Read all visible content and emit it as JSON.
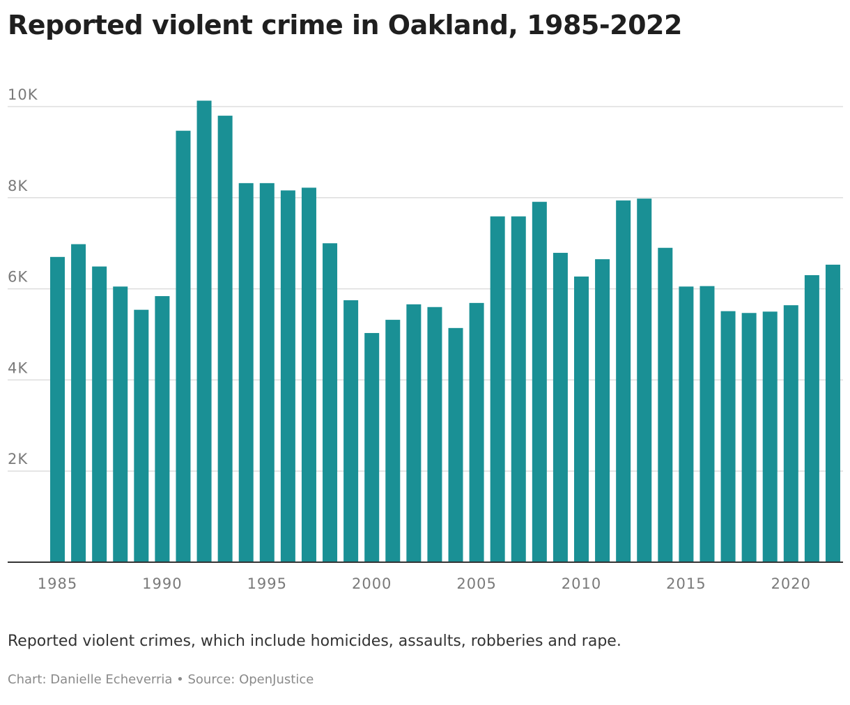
{
  "title": "Reported violent crime in Oakland, 1985-2022",
  "caption": "Reported violent crimes, which include homicides, assaults, robberies and rape.",
  "credit": "Chart: Danielle Echeverria • Source: OpenJustice",
  "colors": {
    "bar": "#1a9095",
    "grid": "#dddddd",
    "axis": "#333333",
    "text": "#1f1f1f",
    "muted": "#7a7a7a"
  },
  "chart_data": {
    "type": "bar",
    "categories": [
      "1985",
      "1986",
      "1987",
      "1988",
      "1989",
      "1990",
      "1991",
      "1992",
      "1993",
      "1994",
      "1995",
      "1996",
      "1997",
      "1998",
      "1999",
      "2000",
      "2001",
      "2002",
      "2003",
      "2004",
      "2005",
      "2006",
      "2007",
      "2008",
      "2009",
      "2010",
      "2011",
      "2012",
      "2013",
      "2014",
      "2015",
      "2016",
      "2017",
      "2018",
      "2019",
      "2020",
      "2021",
      "2022"
    ],
    "values": [
      6700,
      6980,
      6490,
      6050,
      5540,
      5840,
      9470,
      10130,
      9800,
      8320,
      8320,
      8160,
      8220,
      7000,
      5750,
      5030,
      5320,
      5660,
      5600,
      5140,
      5690,
      7590,
      7590,
      7910,
      6790,
      6270,
      6650,
      7940,
      7980,
      6900,
      6050,
      6060,
      5510,
      5470,
      5500,
      5640,
      6300,
      6530
    ],
    "xticks": [
      "1985",
      "1990",
      "1995",
      "2000",
      "2005",
      "2010",
      "2015",
      "2020"
    ],
    "yticks": [
      2000,
      4000,
      6000,
      8000,
      10000
    ],
    "ytick_labels": [
      "2K",
      "4K",
      "6K",
      "8K",
      "10K"
    ],
    "ylim": [
      0,
      10000
    ],
    "grid": true,
    "legend": "none"
  }
}
